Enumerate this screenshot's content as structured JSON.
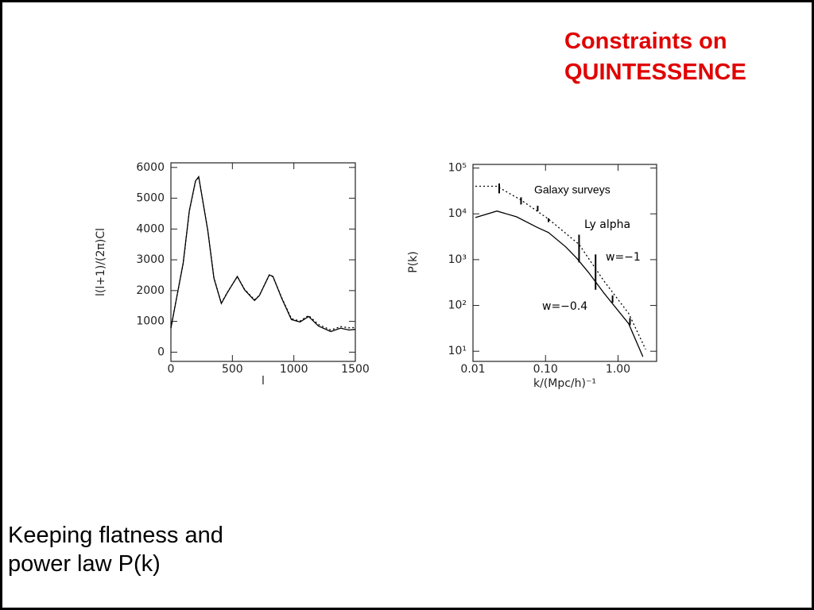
{
  "slide": {
    "title": "Constraints on QUINTESSENCE",
    "caption": "Keeping flatness and power law P(k)"
  },
  "chart_data": [
    {
      "type": "line",
      "xlabel": "l",
      "ylabel": "l(l+1)/(2π)Cl",
      "xlim": [
        0,
        1500
      ],
      "ylim": [
        -300,
        6150
      ],
      "xticks": [
        0,
        500,
        1000,
        1500
      ],
      "yticks": [
        0,
        1000,
        2000,
        3000,
        4000,
        5000,
        6000
      ],
      "series": [
        {
          "color": "#000000",
          "dash": false,
          "x": [
            0,
            100,
            150,
            200,
            226,
            300,
            350,
            410,
            460,
            540,
            600,
            680,
            720,
            800,
            830,
            900,
            980,
            1050,
            1120,
            1200,
            1300,
            1380,
            1450,
            1500
          ],
          "values": [
            780,
            2900,
            4600,
            5560,
            5700,
            3950,
            2400,
            1580,
            1940,
            2460,
            2020,
            1680,
            1840,
            2510,
            2460,
            1760,
            1060,
            980,
            1160,
            850,
            670,
            780,
            720,
            740
          ]
        },
        {
          "color": "#000000",
          "dash": true,
          "x": [
            0,
            100,
            150,
            200,
            226,
            300,
            350,
            410,
            460,
            540,
            600,
            680,
            720,
            800,
            830,
            900,
            980,
            1050,
            1120,
            1200,
            1300,
            1380,
            1450,
            1500
          ],
          "values": [
            800,
            2880,
            4580,
            5550,
            5690,
            3960,
            2420,
            1600,
            1950,
            2450,
            2040,
            1700,
            1850,
            2500,
            2450,
            1780,
            1090,
            1010,
            1190,
            900,
            720,
            830,
            790,
            800
          ]
        }
      ]
    },
    {
      "type": "line",
      "xlabel": "k/(Mpc/h)⁻¹",
      "ylabel": "P(k)",
      "xscale": "log",
      "yscale": "log",
      "xlim": [
        0.01,
        3.4
      ],
      "ylim": [
        6,
        120000
      ],
      "xticks": [
        0.01,
        {
          "value": 0.1,
          "label": "0.10"
        },
        {
          "value": 1,
          "label": "1.00"
        }
      ],
      "yticks": [
        {
          "value": 10,
          "label": "10¹"
        },
        {
          "value": 100,
          "label": "10²"
        },
        {
          "value": 1000,
          "label": "10³"
        },
        {
          "value": 10000,
          "label": "10⁴"
        },
        {
          "value": 100000,
          "label": "10⁵"
        }
      ],
      "series": [
        {
          "color": "#000000",
          "dash": true,
          "x": [
            0.0108,
            0.0214,
            0.046,
            0.11,
            0.29,
            0.65,
            1.4,
            2.4
          ],
          "values": [
            40000,
            40000,
            20000,
            7700,
            2150,
            330,
            67,
            11
          ]
        },
        {
          "color": "#000000",
          "dash": false,
          "x": [
            0.0108,
            0.0214,
            0.04,
            0.076,
            0.11,
            0.19,
            0.27,
            0.39,
            0.65,
            1.4,
            2.2
          ],
          "values": [
            8300,
            11500,
            8600,
            5100,
            3900,
            1900,
            1070,
            530,
            180,
            40,
            7.6
          ]
        }
      ],
      "error_bars": {
        "x": [
          0.023,
          0.046,
          0.078,
          0.11,
          0.29,
          0.49,
          0.84,
          1.46
        ],
        "low": [
          28000,
          16000,
          11500,
          6600,
          870,
          220,
          115,
          37
        ],
        "high": [
          46000,
          23000,
          15000,
          8000,
          3500,
          1300,
          165,
          53
        ]
      },
      "annotations": [
        "Galaxy surveys",
        "Ly alpha",
        "w=−1",
        "w=−0.4"
      ]
    }
  ]
}
